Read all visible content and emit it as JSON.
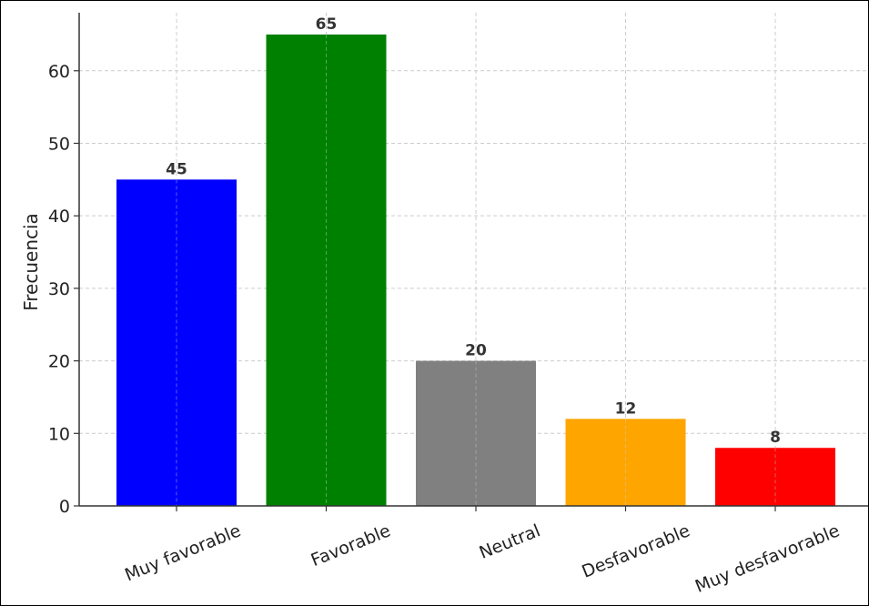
{
  "chart_data": {
    "type": "bar",
    "title": "",
    "xlabel": "",
    "ylabel": "Frecuencia",
    "categories": [
      "Muy favorable",
      "Favorable",
      "Neutral",
      "Desfavorable",
      "Muy desfavorable"
    ],
    "values": [
      45,
      65,
      20,
      12,
      8
    ],
    "colors": [
      "#0000ff",
      "#008000",
      "#808080",
      "#ffa500",
      "#ff0000"
    ],
    "ylim": [
      0,
      68
    ],
    "yticks": [
      0,
      10,
      20,
      30,
      40,
      50,
      60
    ],
    "grid": true,
    "legend": "none"
  }
}
